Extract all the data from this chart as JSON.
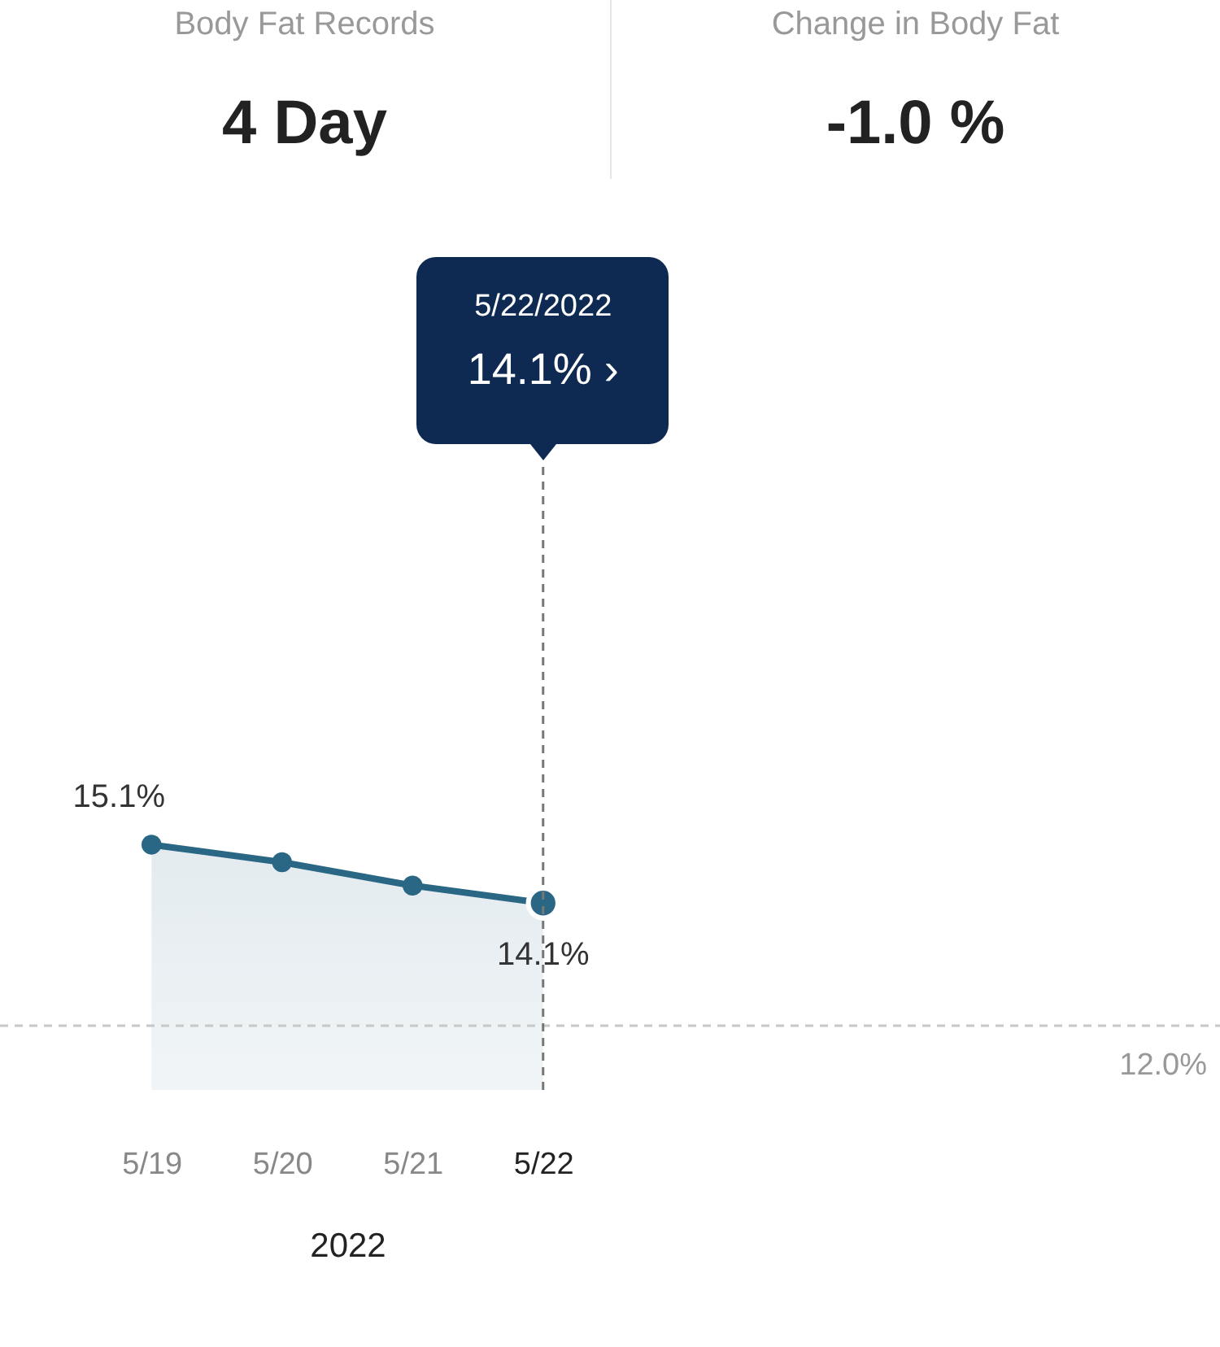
{
  "chart_data": {
    "type": "area",
    "categories": [
      "5/19",
      "5/20",
      "5/21",
      "5/22"
    ],
    "series": [
      {
        "color": "#2a6785",
        "values": [
          15.1,
          14.8,
          14.4,
          14.1
        ],
        "value_labels": [
          "15.1%",
          null,
          null,
          "14.1%"
        ]
      }
    ],
    "xlabel": "2022",
    "ylim": [
      10.9,
      26.5
    ],
    "tick_labels": "x",
    "marker": "circle",
    "grid": false,
    "ref_lines": [
      {
        "axis": "y",
        "value": 12.0,
        "label": "12.0%",
        "color": "#c8c8c8",
        "line_style": "dashed"
      },
      {
        "axis": "x",
        "value": "5/22",
        "color": "#777777",
        "line_style": "dashed"
      }
    ],
    "annotations": [
      "Body Fat Records",
      "4 Day",
      "Change in Body Fat",
      "-1.0 %",
      "5/22/2022",
      "14.1% ›"
    ]
  }
}
